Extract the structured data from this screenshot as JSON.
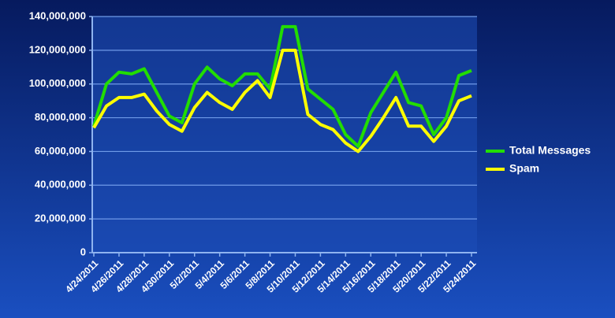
{
  "chart_data": {
    "type": "line",
    "categories": [
      "4/24/2011",
      null,
      "4/26/2011",
      null,
      "4/28/2011",
      null,
      "4/30/2011",
      null,
      "5/2/2011",
      null,
      "5/4/2011",
      null,
      "5/6/2011",
      null,
      "5/8/2011",
      null,
      "5/10/2011",
      null,
      "5/12/2011",
      null,
      "5/14/2011",
      null,
      "5/16/2011",
      null,
      "5/18/2011",
      null,
      "5/20/2011",
      null,
      "5/22/2011",
      null,
      "5/24/2011"
    ],
    "series": [
      {
        "name": "Total Messages",
        "color": "#22dd00",
        "values": [
          75000000,
          100000000,
          107000000,
          106000000,
          109000000,
          95000000,
          81000000,
          77000000,
          100000000,
          110000000,
          103000000,
          99000000,
          106000000,
          106000000,
          97000000,
          134000000,
          134000000,
          97000000,
          91000000,
          85000000,
          70000000,
          63000000,
          83000000,
          95000000,
          107000000,
          89000000,
          87000000,
          70000000,
          80000000,
          105000000,
          108000000
        ]
      },
      {
        "name": "Spam",
        "color": "#ffff00",
        "values": [
          74000000,
          87000000,
          92000000,
          92000000,
          94000000,
          84000000,
          76000000,
          72000000,
          86000000,
          95000000,
          89000000,
          85000000,
          95000000,
          102000000,
          92000000,
          120000000,
          120000000,
          82000000,
          76000000,
          73000000,
          65000000,
          60000000,
          69000000,
          80000000,
          92000000,
          75000000,
          75000000,
          66000000,
          75000000,
          90000000,
          93000000
        ]
      }
    ],
    "ylim": [
      0,
      140000000
    ],
    "yticks": [
      0,
      {
        "value": 20000000,
        "label": "20,000,000"
      },
      {
        "value": 40000000,
        "label": "40,000,000"
      },
      {
        "value": 60000000,
        "label": "60,000,000"
      },
      {
        "value": 80000000,
        "label": "80,000,000"
      },
      {
        "value": 100000000,
        "label": "100,000,000"
      },
      {
        "value": 120000000,
        "label": "120,000,000"
      },
      {
        "value": 140000000,
        "label": "140,000,000"
      }
    ],
    "grid": true,
    "legend": "right"
  }
}
